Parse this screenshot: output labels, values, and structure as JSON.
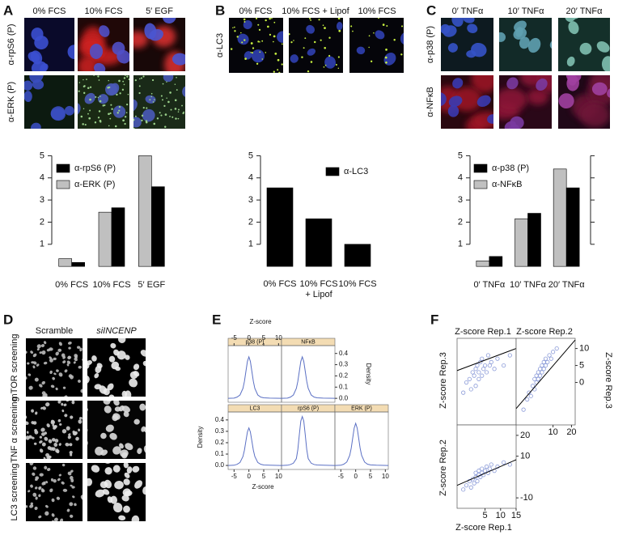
{
  "panels": {
    "A": {
      "label": "A",
      "columns": [
        "0% FCS",
        "10% FCS",
        "5′ EGF"
      ],
      "rows": [
        "α-rpS6 (P)",
        "α-ERK (P)"
      ]
    },
    "B": {
      "label": "B",
      "columns": [
        "0% FCS",
        "10% FCS + Lipof",
        "10% FCS"
      ],
      "rows": [
        "α-LC3"
      ]
    },
    "C": {
      "label": "C",
      "columns": [
        "0′ TNFα",
        "10′ TNFα",
        "20′ TNFα"
      ],
      "rows": [
        "α-p38 (P)",
        "α-NFκB"
      ]
    },
    "D": {
      "label": "D",
      "columns": [
        "Scramble",
        "siINCENP"
      ],
      "rows": [
        "mTOR screening",
        "TNF α screening",
        "LC3 screening"
      ]
    },
    "E": {
      "label": "E"
    },
    "F": {
      "label": "F"
    }
  },
  "chart_data": [
    {
      "type": "bar",
      "categories": [
        "0% FCS",
        "10% FCS",
        "5′ EGF"
      ],
      "series": [
        {
          "name": "α-ERK (P)",
          "color": "#c0c0c0",
          "values": [
            0.35,
            2.45,
            5.0
          ]
        },
        {
          "name": "α-rpS6 (P)",
          "color": "#000000",
          "values": [
            0.18,
            2.65,
            3.6
          ]
        }
      ],
      "ylim": [
        -0.25,
        5.6
      ],
      "yticks": [
        1,
        2,
        3,
        4,
        5
      ]
    },
    {
      "type": "bar",
      "categories": [
        "0% FCS",
        "10% FCS + Lipof",
        "10% FCS"
      ],
      "series": [
        {
          "name": "α-LC3",
          "color": "#000000",
          "values": [
            3.55,
            2.15,
            1.0
          ]
        }
      ],
      "ylim": [
        -0.25,
        5.6
      ],
      "yticks": [
        1,
        2,
        3,
        4,
        5
      ]
    },
    {
      "type": "bar",
      "categories": [
        "0′ TNFα",
        "10′ TNFα",
        "20′ TNFα"
      ],
      "series": [
        {
          "name": "α-NFκB",
          "color": "#c0c0c0",
          "values": [
            0.25,
            2.15,
            4.4
          ]
        },
        {
          "name": "α-p38 (P)",
          "color": "#000000",
          "values": [
            0.45,
            2.4,
            3.55
          ]
        }
      ],
      "ylim": [
        -0.25,
        5.6
      ],
      "yticks": [
        1,
        2,
        3,
        4,
        5
      ]
    },
    {
      "type": "line",
      "title": "p38 (P)",
      "color": "#5b70c4",
      "xlim": [
        -7,
        11
      ],
      "ylim": [
        -0.035,
        0.47
      ],
      "x": [
        -7,
        -5,
        -4,
        -3,
        -2,
        -1.5,
        -1,
        -0.5,
        0,
        0.5,
        1,
        1.5,
        2,
        3,
        4,
        5,
        7,
        11
      ],
      "values": [
        0,
        0.002,
        0.011,
        0.03,
        0.089,
        0.152,
        0.241,
        0.329,
        0.37,
        0.329,
        0.241,
        0.152,
        0.089,
        0.03,
        0.011,
        0.005,
        0.002,
        0
      ],
      "xticks": [
        -5,
        0,
        5,
        10
      ],
      "xlabel": "Z-score"
    },
    {
      "type": "line",
      "title": "NFκB",
      "color": "#5b70c4",
      "xlim": [
        -7,
        11
      ],
      "ylim": [
        -0.035,
        0.47
      ],
      "x": [
        -7,
        -5,
        -4,
        -3,
        -2,
        -1.5,
        -1,
        -0.5,
        0,
        0.5,
        1,
        1.5,
        2,
        3,
        4,
        5,
        7,
        11
      ],
      "values": [
        0,
        0.002,
        0.011,
        0.03,
        0.089,
        0.152,
        0.241,
        0.329,
        0.37,
        0.329,
        0.241,
        0.152,
        0.089,
        0.03,
        0.011,
        0.005,
        0.002,
        0
      ],
      "yticks": [
        {
          "value": 0,
          "label": "0.0"
        },
        0.1,
        0.2,
        0.3,
        0.4
      ],
      "ylabel": "Density"
    },
    {
      "type": "line",
      "title": "LC3",
      "color": "#5b70c4",
      "xlim": [
        -7,
        11
      ],
      "ylim": [
        -0.035,
        0.47
      ],
      "x": [
        -7,
        -5,
        -4,
        -3,
        -2,
        -1.5,
        -1,
        -0.5,
        0,
        0.5,
        1,
        1.5,
        2,
        3,
        4,
        5,
        7,
        11
      ],
      "values": [
        0,
        0.002,
        0.01,
        0.026,
        0.079,
        0.135,
        0.215,
        0.294,
        0.33,
        0.294,
        0.215,
        0.135,
        0.079,
        0.026,
        0.01,
        0.004,
        0.002,
        0
      ],
      "xticks": [
        -5,
        0,
        5,
        10
      ],
      "yticks": [
        {
          "value": 0,
          "label": "0.0"
        },
        0.1,
        0.2,
        0.3,
        0.4
      ],
      "xlabel": "Z-score",
      "ylabel": "Density"
    },
    {
      "type": "line",
      "title": "rpS6 (P)",
      "color": "#5b70c4",
      "xlim": [
        -7,
        11
      ],
      "ylim": [
        -0.035,
        0.47
      ],
      "x": [
        -7,
        -5,
        -4,
        -3,
        -2,
        -1.5,
        -1,
        -0.5,
        0,
        0.5,
        1,
        1.5,
        2,
        3,
        4,
        5,
        7,
        11
      ],
      "values": [
        0,
        0.002,
        0.008,
        0.02,
        0.06,
        0.14,
        0.27,
        0.39,
        0.43,
        0.39,
        0.27,
        0.14,
        0.06,
        0.02,
        0.008,
        0.004,
        0.002,
        0
      ]
    },
    {
      "type": "line",
      "title": "ERK (P)",
      "color": "#5b70c4",
      "xlim": [
        -7,
        11
      ],
      "ylim": [
        -0.035,
        0.47
      ],
      "x": [
        -7,
        -5,
        -4,
        -3,
        -2,
        -1.5,
        -1,
        -0.5,
        0,
        0.5,
        1,
        1.5,
        2,
        3,
        4,
        5,
        7,
        11
      ],
      "values": [
        0,
        0.002,
        0.011,
        0.03,
        0.089,
        0.152,
        0.241,
        0.329,
        0.37,
        0.329,
        0.241,
        0.152,
        0.089,
        0.03,
        0.011,
        0.005,
        0.002,
        0
      ],
      "xticks": [
        -5,
        0,
        5,
        10
      ]
    },
    {
      "type": "scatter",
      "title": "Z-score Rep.1",
      "ylabel": "Z-score Rep.3",
      "color": "#8a9ad8",
      "xlim": [
        -4,
        15
      ],
      "ylim": [
        -12.5,
        13
      ],
      "x": [
        -2,
        -1,
        0,
        0.5,
        1,
        1.5,
        2,
        2,
        2.5,
        3,
        3,
        3.5,
        4,
        4,
        4.5,
        5,
        5.5,
        6,
        6.5,
        7,
        8,
        9,
        11,
        13
      ],
      "values": [
        -3,
        0,
        1,
        -2,
        3,
        2,
        4,
        -1,
        5,
        3,
        1,
        6,
        2,
        7,
        4,
        5,
        3,
        8,
        5,
        6,
        4,
        7,
        5,
        8
      ],
      "fit": {
        "x": [
          -4,
          15
        ],
        "values": [
          3.5,
          10
        ]
      }
    },
    {
      "type": "scatter",
      "title": "Z-score Rep.2",
      "ylabel": "Z-score Rep.3",
      "color": "#8a9ad8",
      "xlim": [
        -10,
        22
      ],
      "ylim": [
        -12.5,
        13
      ],
      "xticks": [
        10,
        20
      ],
      "yticks": [
        0,
        5,
        10
      ],
      "x": [
        -6,
        -4,
        -3,
        -2,
        -1,
        0,
        0,
        1,
        1,
        2,
        2,
        3,
        3,
        4,
        4,
        5,
        5,
        6,
        6,
        7,
        8,
        9,
        10,
        12
      ],
      "values": [
        -8,
        -5,
        -3,
        -4,
        -1,
        -2,
        1,
        0,
        2,
        1,
        3,
        2,
        4,
        3,
        5,
        4,
        6,
        5,
        7,
        6,
        8,
        7,
        9,
        10
      ],
      "fit": {
        "x": [
          -10,
          22
        ],
        "values": [
          -7.7,
          12.5
        ]
      }
    },
    {
      "type": "scatter",
      "ylabel": "Z-score Rep.2",
      "xlabel": "Z-score Rep.1",
      "color": "#8a9ad8",
      "xlim": [
        -4,
        15
      ],
      "ylim": [
        -15,
        25
      ],
      "xticks": [
        5,
        10,
        15
      ],
      "yticks": [
        -10,
        10,
        20
      ],
      "x": [
        -2,
        -1,
        0,
        0.5,
        1,
        1.5,
        2,
        2,
        2.5,
        3,
        3,
        3.5,
        4,
        4,
        4.5,
        5,
        5.5,
        6,
        6.5,
        7,
        8,
        9,
        11,
        13
      ],
      "values": [
        -6,
        -4,
        -2,
        -5,
        -1,
        -3,
        0,
        2,
        -2,
        1,
        3,
        0,
        2,
        4,
        1,
        3,
        5,
        2,
        4,
        6,
        3,
        5,
        7,
        6
      ],
      "fit": {
        "x": [
          -4,
          15
        ],
        "values": [
          -4,
          8.3
        ]
      }
    }
  ]
}
